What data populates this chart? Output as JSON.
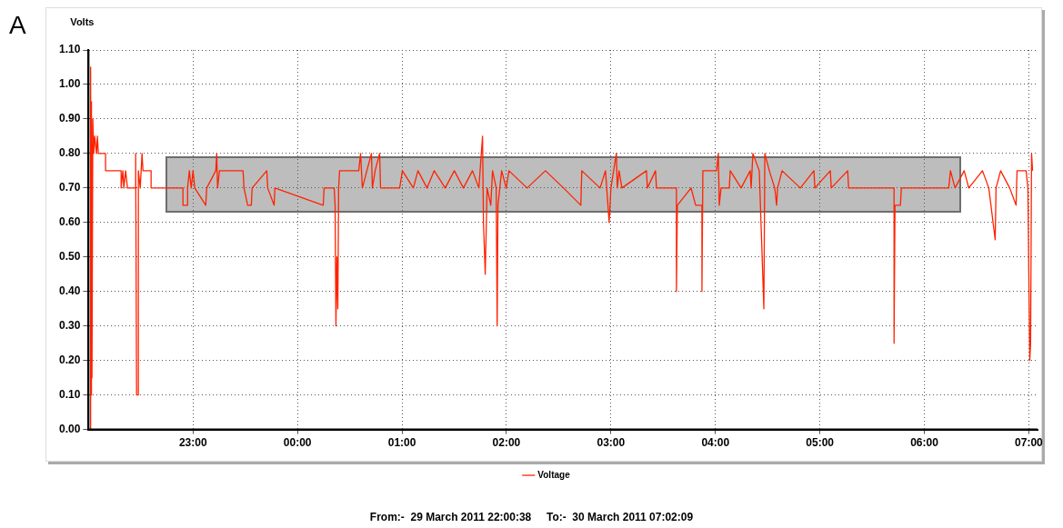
{
  "chart_data": {
    "type": "line",
    "ylabel": "Volts",
    "annotations": [
      "A",
      "From:-  29 March 2011 22:00:38     To:-  30 March 2011 07:02:09"
    ],
    "xlim": [
      "2011-03-29T22:00",
      "2011-03-30T07:05"
    ],
    "xticks": [
      {
        "value": "2011-03-29T23:00",
        "label": "23:00"
      },
      {
        "value": "2011-03-30T00:00",
        "label": "00:00"
      },
      {
        "value": "2011-03-30T01:00",
        "label": "01:00"
      },
      {
        "value": "2011-03-30T02:00",
        "label": "02:00"
      },
      {
        "value": "2011-03-30T03:00",
        "label": "03:00"
      },
      {
        "value": "2011-03-30T04:00",
        "label": "04:00"
      },
      {
        "value": "2011-03-30T05:00",
        "label": "05:00"
      },
      {
        "value": "2011-03-30T06:00",
        "label": "06:00"
      },
      {
        "value": "2011-03-30T07:00",
        "label": "07:00"
      }
    ],
    "ylim": [
      0,
      1.1
    ],
    "yticks": [
      {
        "value": 0,
        "label": "0.00"
      },
      {
        "value": 0.1,
        "label": "0.10"
      },
      {
        "value": 0.2,
        "label": "0.20"
      },
      {
        "value": 0.3,
        "label": "0.30"
      },
      {
        "value": 0.4,
        "label": "0.40"
      },
      {
        "value": 0.5,
        "label": "0.50"
      },
      {
        "value": 0.6,
        "label": "0.60"
      },
      {
        "value": 0.7,
        "label": "0.70"
      },
      {
        "value": 0.8,
        "label": "0.80"
      },
      {
        "value": 0.9,
        "label": "0.90"
      },
      {
        "value": 1.0,
        "label": "1.00"
      },
      {
        "value": 1.1,
        "label": "1.10"
      }
    ],
    "grid": true,
    "legend": "bottom",
    "marker": "none",
    "series": [
      {
        "name": "Voltage",
        "color": "#ff2200",
        "x": [
          "2011-03-29T22:00:38",
          "2011-03-29T22:00:54",
          "2011-03-29T22:01:12",
          "2011-03-29T22:01:26",
          "2011-03-29T22:01:41",
          "2011-03-29T22:01:59",
          "2011-03-29T22:02:28",
          "2011-03-29T22:03:00",
          "2011-03-29T22:03:32",
          "2011-03-29T22:04:34",
          "2011-03-29T22:05:06",
          "2011-03-29T22:05:38",
          "2011-03-29T22:09:47",
          "2011-03-29T22:09:47",
          "2011-03-29T22:18:43",
          "2011-03-29T22:18:43",
          "2011-03-29T22:19:44",
          "2011-03-29T22:20:17",
          "2011-03-29T22:21:18",
          "2011-03-29T22:22:23",
          "2011-03-29T22:27:04",
          "2011-03-29T22:27:04",
          "2011-03-29T22:27:36",
          "2011-03-29T22:28:37",
          "2011-03-29T22:28:37",
          "2011-03-29T22:29:42",
          "2011-03-29T22:30:43",
          "2011-03-29T22:31:16",
          "2011-03-29T22:35:56",
          "2011-03-29T22:35:56",
          "2011-03-29T22:54:14",
          "2011-03-29T22:54:14",
          "2011-03-29T22:56:53",
          "2011-03-29T22:56:53",
          "2011-03-29T22:57:54",
          "2011-03-29T22:58:59",
          "2011-03-29T23:00:00",
          "2011-03-29T23:01:01",
          "2011-03-29T23:07:19",
          "2011-03-29T23:07:52",
          "2011-03-29T23:13:05",
          "2011-03-29T23:13:37",
          "2011-03-29T23:14:06",
          "2011-03-29T23:15:11",
          "2011-03-29T23:28:44",
          "2011-03-29T23:29:17",
          "2011-03-29T23:31:23",
          "2011-03-29T23:33:29",
          "2011-03-29T23:33:58",
          "2011-03-29T23:42:22",
          "2011-03-29T23:42:54",
          "2011-03-29T23:46:34",
          "2011-03-29T23:47:02",
          "2011-03-30T00:14:46",
          "2011-03-30T00:15:18",
          "2011-03-30T00:21:04",
          "2011-03-30T00:21:36",
          "2011-03-30T00:22:05",
          "2011-03-30T00:22:37",
          "2011-03-30T00:23:10",
          "2011-03-30T00:23:38",
          "2011-03-30T00:24:11",
          "2011-03-30T00:35:10",
          "2011-03-30T00:36:14",
          "2011-03-30T00:37:16",
          "2011-03-30T00:39:50",
          "2011-03-30T00:42:29",
          "2011-03-30T00:43:01",
          "2011-03-30T00:44:35",
          "2011-03-30T00:47:10",
          "2011-03-30T00:47:42",
          "2011-03-30T00:49:48",
          "2011-03-30T00:58:41",
          "2011-03-30T01:00:14",
          "2011-03-30T01:06:32",
          "2011-03-30T01:09:11",
          "2011-03-30T01:14:24",
          "2011-03-30T01:18:32",
          "2011-03-30T01:24:50",
          "2011-03-30T01:30:04",
          "2011-03-30T01:35:17",
          "2011-03-30T01:40:30",
          "2011-03-30T01:44:10",
          "2011-03-30T01:46:16",
          "2011-03-30T01:46:48",
          "2011-03-30T01:47:49",
          "2011-03-30T01:48:54",
          "2011-03-30T01:51:00",
          "2011-03-30T01:52:01",
          "2011-03-30T01:54:07",
          "2011-03-30T01:54:40",
          "2011-03-30T01:55:08",
          "2011-03-30T01:57:14",
          "2011-03-30T01:59:53",
          "2011-03-30T02:01:26",
          "2011-03-30T02:11:53",
          "2011-03-30T02:22:23",
          "2011-03-30T02:32:49",
          "2011-03-30T02:42:43",
          "2011-03-30T02:43:16",
          "2011-03-30T02:53:46",
          "2011-03-30T02:56:53",
          "2011-03-30T02:58:59",
          "2011-03-30T03:00:00",
          "2011-03-30T03:03:07",
          "2011-03-30T03:03:40",
          "2011-03-30T03:04:41",
          "2011-03-30T03:06:18",
          "2011-03-30T03:20:24",
          "2011-03-30T03:20:56",
          "2011-03-30T03:25:37",
          "2011-03-30T03:26:10",
          "2011-03-30T03:37:37",
          "2011-03-30T03:37:37",
          "2011-03-30T03:38:10",
          "2011-03-30T03:46:01",
          "2011-03-30T03:48:40",
          "2011-03-30T03:52:16",
          "2011-03-30T03:52:16",
          "2011-03-30T03:52:48",
          "2011-03-30T04:00:40",
          "2011-03-30T04:01:41",
          "2011-03-30T04:02:13",
          "2011-03-30T04:03:14",
          "2011-03-30T04:07:59",
          "2011-03-30T04:08:31",
          "2011-03-30T04:14:46",
          "2011-03-30T04:19:59",
          "2011-03-30T04:20:31",
          "2011-03-30T04:21:32",
          "2011-03-30T04:25:12",
          "2011-03-30T04:27:50",
          "2011-03-30T04:28:23",
          "2011-03-30T04:30:58",
          "2011-03-30T04:34:05",
          "2011-03-30T04:35:10",
          "2011-03-30T04:35:42",
          "2011-03-30T04:38:17",
          "2011-03-30T04:48:47",
          "2011-03-30T04:56:35",
          "2011-03-30T04:57:07",
          "2011-03-30T05:06:00",
          "2011-03-30T05:06:32",
          "2011-03-30T05:15:58",
          "2011-03-30T05:16:30",
          "2011-03-30T05:42:36",
          "2011-03-30T05:42:36",
          "2011-03-30T05:43:08",
          "2011-03-30T05:46:16",
          "2011-03-30T05:46:48",
          "2011-03-30T06:13:59",
          "2011-03-30T06:15:00",
          "2011-03-30T06:17:38",
          "2011-03-30T06:22:52",
          "2011-03-30T06:25:30",
          "2011-03-30T06:33:22",
          "2011-03-30T06:37:01",
          "2011-03-30T06:40:41",
          "2011-03-30T06:41:10",
          "2011-03-30T06:43:48",
          "2011-03-30T06:49:01",
          "2011-03-30T06:52:41",
          "2011-03-30T06:53:13",
          "2011-03-30T06:58:26",
          "2011-03-30T06:59:28",
          "2011-03-30T07:00:32",
          "2011-03-30T07:01:01",
          "2011-03-30T07:01:34",
          "2011-03-30T07:02:09"
        ],
        "values": [
          0,
          0,
          1.05,
          0.1,
          0.95,
          0.15,
          0.9,
          0.8,
          0.85,
          0.8,
          0.85,
          0.8,
          0.8,
          0.75,
          0.75,
          0.7,
          0.75,
          0.7,
          0.75,
          0.7,
          0.7,
          0.8,
          0.1,
          0.1,
          0.75,
          0.7,
          0.8,
          0.75,
          0.75,
          0.7,
          0.7,
          0.65,
          0.65,
          0.7,
          0.75,
          0.7,
          0.75,
          0.7,
          0.65,
          0.7,
          0.75,
          0.8,
          0.7,
          0.75,
          0.75,
          0.7,
          0.65,
          0.65,
          0.7,
          0.75,
          0.7,
          0.65,
          0.7,
          0.65,
          0.7,
          0.7,
          0.65,
          0.3,
          0.5,
          0.35,
          0.7,
          0.75,
          0.75,
          0.8,
          0.7,
          0.75,
          0.8,
          0.7,
          0.75,
          0.8,
          0.7,
          0.7,
          0.7,
          0.75,
          0.7,
          0.75,
          0.7,
          0.75,
          0.7,
          0.75,
          0.7,
          0.75,
          0.7,
          0.85,
          0.6,
          0.45,
          0.7,
          0.65,
          0.75,
          0.7,
          0.3,
          0.65,
          0.75,
          0.7,
          0.75,
          0.7,
          0.75,
          0.7,
          0.65,
          0.75,
          0.7,
          0.75,
          0.6,
          0.7,
          0.8,
          0.7,
          0.75,
          0.7,
          0.75,
          0.7,
          0.75,
          0.7,
          0.7,
          0.4,
          0.65,
          0.7,
          0.65,
          0.65,
          0.4,
          0.75,
          0.75,
          0.8,
          0.65,
          0.7,
          0.7,
          0.75,
          0.7,
          0.75,
          0.7,
          0.8,
          0.75,
          0.35,
          0.8,
          0.75,
          0.7,
          0.65,
          0.7,
          0.75,
          0.7,
          0.75,
          0.7,
          0.75,
          0.7,
          0.75,
          0.7,
          0.7,
          0.25,
          0.65,
          0.65,
          0.7,
          0.7,
          0.75,
          0.7,
          0.75,
          0.7,
          0.75,
          0.7,
          0.55,
          0.7,
          0.75,
          0.7,
          0.65,
          0.75,
          0.75,
          0.7,
          0.2,
          0.25,
          0.8,
          0.75
        ]
      }
    ]
  }
}
